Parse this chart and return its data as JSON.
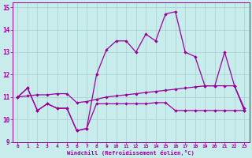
{
  "xlabel": "Windchill (Refroidissement éolien,°C)",
  "xlim_min": -0.5,
  "xlim_max": 23.5,
  "ylim_min": 9,
  "ylim_max": 15.2,
  "yticks": [
    9,
    10,
    11,
    12,
    13,
    14,
    15
  ],
  "xticks": [
    0,
    1,
    2,
    3,
    4,
    5,
    6,
    7,
    8,
    9,
    10,
    11,
    12,
    13,
    14,
    15,
    16,
    17,
    18,
    19,
    20,
    21,
    22,
    23
  ],
  "bg_color": "#c8ecec",
  "grid_color": "#b0d8d8",
  "line_color": "#990099",
  "hours": [
    0,
    1,
    2,
    3,
    4,
    5,
    6,
    7,
    8,
    9,
    10,
    11,
    12,
    13,
    14,
    15,
    16,
    17,
    18,
    19,
    20,
    21,
    22,
    23
  ],
  "line_top": [
    11.0,
    11.4,
    10.4,
    10.7,
    10.5,
    10.5,
    9.5,
    9.6,
    12.0,
    13.1,
    13.5,
    13.5,
    13.0,
    13.8,
    13.5,
    14.7,
    14.8,
    13.0,
    12.8,
    11.5,
    11.5,
    13.0,
    11.5,
    10.4
  ],
  "line_mid": [
    11.0,
    11.05,
    11.1,
    11.1,
    11.15,
    11.15,
    10.75,
    10.8,
    10.9,
    11.0,
    11.05,
    11.1,
    11.15,
    11.2,
    11.25,
    11.3,
    11.35,
    11.4,
    11.45,
    11.5,
    11.5,
    11.5,
    11.5,
    10.5
  ],
  "line_bot": [
    11.0,
    11.4,
    10.4,
    10.7,
    10.5,
    10.5,
    9.5,
    9.6,
    10.7,
    10.7,
    10.7,
    10.7,
    10.7,
    10.7,
    10.75,
    10.75,
    10.4,
    10.4,
    10.4,
    10.4,
    10.4,
    10.4,
    10.4,
    10.4
  ]
}
